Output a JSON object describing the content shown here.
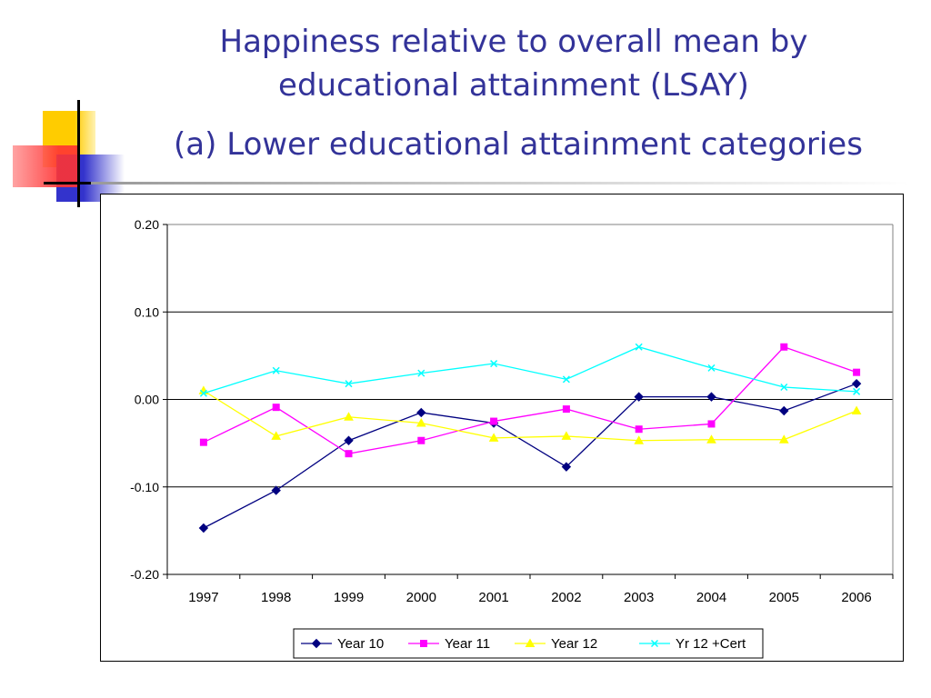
{
  "slide": {
    "title_line1": "Happiness relative to overall mean by",
    "title_line2": "educational attainment (LSAY)",
    "subtitle": "(a)  Lower educational attainment categories"
  },
  "chart_data": {
    "type": "line",
    "title": "",
    "xlabel": "",
    "ylabel": "",
    "categories": [
      "1997",
      "1998",
      "1999",
      "2000",
      "2001",
      "2002",
      "2003",
      "2004",
      "2005",
      "2006"
    ],
    "ylim": [
      -0.2,
      0.2
    ],
    "yticks": [
      0.2,
      0.1,
      0.0,
      -0.1,
      -0.2
    ],
    "ytick_labels": [
      "0.20",
      "0.10",
      "0.00",
      "-0.10",
      "-0.20"
    ],
    "grid": "horizontal major gridlines",
    "legend_position": "bottom",
    "series": [
      {
        "name": "Year 10",
        "color": "#000080",
        "marker": "diamond",
        "values": [
          -0.147,
          -0.104,
          -0.047,
          -0.015,
          -0.027,
          -0.077,
          0.003,
          0.003,
          -0.013,
          0.018
        ]
      },
      {
        "name": "Year 11",
        "color": "#ff00ff",
        "marker": "square",
        "values": [
          -0.049,
          -0.009,
          -0.062,
          -0.047,
          -0.025,
          -0.011,
          -0.034,
          -0.028,
          0.06,
          0.031
        ]
      },
      {
        "name": "Year 12",
        "color": "#ffff00",
        "marker": "triangle",
        "values": [
          0.01,
          -0.042,
          -0.02,
          -0.027,
          -0.044,
          -0.042,
          -0.047,
          -0.046,
          -0.046,
          -0.013
        ]
      },
      {
        "name": "Yr 12 +Cert",
        "color": "#00ffff",
        "marker": "x",
        "values": [
          0.007,
          0.033,
          0.018,
          0.03,
          0.041,
          0.023,
          0.06,
          0.036,
          0.014,
          0.009
        ]
      }
    ]
  }
}
